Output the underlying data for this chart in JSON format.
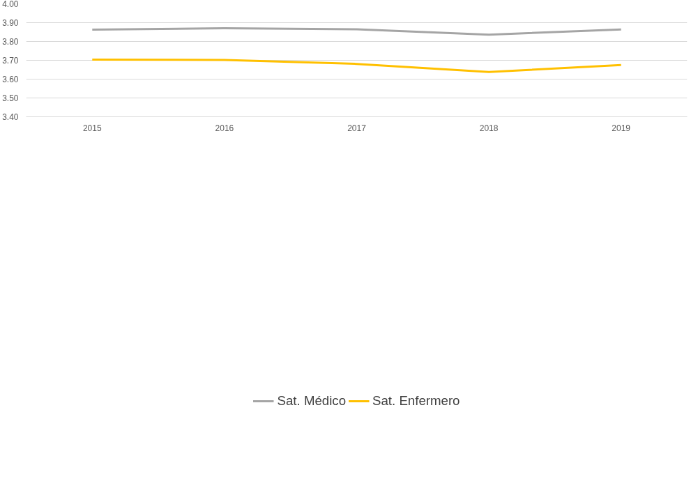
{
  "chart_data": {
    "type": "line",
    "categories": [
      "2015",
      "2016",
      "2017",
      "2018",
      "2019"
    ],
    "series": [
      {
        "name": "Sat. Médico",
        "color": "#a5a5a5",
        "values": [
          3.863,
          3.87,
          3.865,
          3.836,
          3.864
        ]
      },
      {
        "name": "Sat. Enfermero",
        "color": "#ffc000",
        "values": [
          3.704,
          3.702,
          3.681,
          3.638,
          3.675
        ]
      }
    ],
    "ylim": [
      3.4,
      4.0
    ],
    "yticks": [
      {
        "value": 3.4,
        "label": "3.40"
      },
      {
        "value": 3.5,
        "label": "3.50"
      },
      {
        "value": 3.6,
        "label": "3.60"
      },
      {
        "value": 3.7,
        "label": "3.70"
      },
      {
        "value": 3.8,
        "label": "3.80"
      },
      {
        "value": 3.9,
        "label": "3.90"
      },
      {
        "value": 4.0,
        "label": "4.00"
      }
    ],
    "grid": "y",
    "legend": "bottom",
    "marker": "none",
    "line_style": "solid"
  }
}
